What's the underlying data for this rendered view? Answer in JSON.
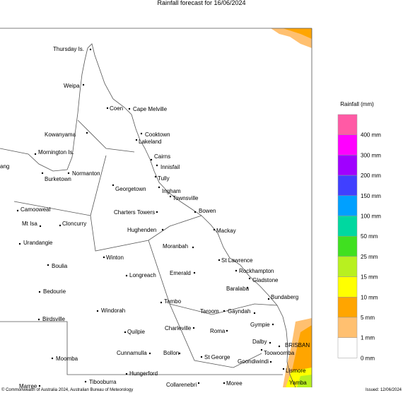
{
  "title": "Rainfall forecast for 16/06/2024",
  "places": [
    "Thursday Is.",
    "Weipa",
    "Coen",
    "Cape Melville",
    "Kowanyama",
    "Cooktown",
    "Lakeland",
    "Mornington Is.",
    "Cairns",
    "Innisfail",
    "ang",
    "Normanton",
    "Burketown",
    "Tully",
    "Georgetown",
    "Ingham",
    "Townsville",
    "Camooweal",
    "Charters Towers",
    "Bowen",
    "Mt Isa",
    "Cloncurry",
    "Mackay",
    "Hughenden",
    "Urandangie",
    "Moranbah",
    "St Lawrence",
    "Winton",
    "Boulia",
    "Rockhampton",
    "Emerald",
    "Longreach",
    "Gladstone",
    "Bedourie",
    "Baralaba",
    "Bundaberg",
    "Tambo",
    "Windorah",
    "Taroom",
    "Gayndah",
    "Birdsville",
    "Gympie",
    "Quilpie",
    "Charleville",
    "Roma",
    "BRISBAN",
    "Dalby",
    "Cunnamulla",
    "Bollon",
    "Toowoomba",
    "Moomba",
    "St George",
    "Goondiwindi",
    "Lismore",
    "Hungerford",
    "Tibooburra",
    "Collarenebri",
    "Moree",
    "Yamba",
    "Marree"
  ],
  "legend": {
    "title": "Rainfall (mm)",
    "items": [
      {
        "label": "400 mm",
        "color": "#ff5aa5"
      },
      {
        "label": "300 mm",
        "color": "#ff00ff"
      },
      {
        "label": "200 mm",
        "color": "#a000ff"
      },
      {
        "label": "150 mm",
        "color": "#4040ff"
      },
      {
        "label": "100 mm",
        "color": "#00a0ff"
      },
      {
        "label": "50 mm",
        "color": "#00d8a0"
      },
      {
        "label": "25 mm",
        "color": "#40e020"
      },
      {
        "label": "15 mm",
        "color": "#b8f020"
      },
      {
        "label": "10 mm",
        "color": "#ffff00"
      },
      {
        "label": "5 mm",
        "color": "#ffa500"
      },
      {
        "label": "1 mm",
        "color": "#ffc070"
      },
      {
        "label": "0 mm",
        "color": "#ffffff"
      }
    ]
  },
  "footer": {
    "copyright": "© Commonwealth of Australia 2024, Australian Bureau of Meteorology",
    "issued": "Issued: 12/06/2024"
  }
}
